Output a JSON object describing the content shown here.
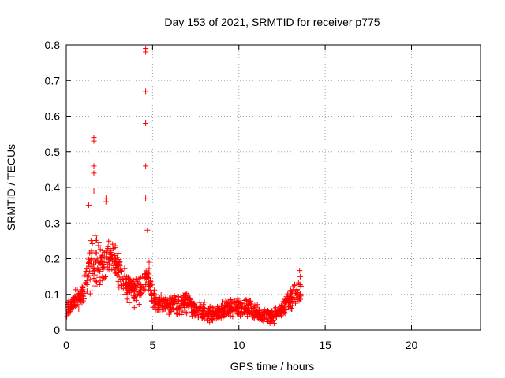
{
  "chart_data": {
    "type": "scatter",
    "title": "Day 153 of 2021, SRMTID for receiver p775",
    "xlabel": "GPS time / hours",
    "ylabel": "SRMTID / TECUs",
    "xlim": [
      0,
      24
    ],
    "ylim": [
      0,
      0.8
    ],
    "x_ticks": [
      0,
      5,
      10,
      15,
      20
    ],
    "y_ticks": [
      0,
      0.1,
      0.2,
      0.3,
      0.4,
      0.5,
      0.6,
      0.7,
      0.8
    ],
    "x_tick_labels": [
      "0",
      "5",
      "10",
      "15",
      "20"
    ],
    "y_tick_labels": [
      "0",
      "0.1",
      "0.2",
      "0.3",
      "0.4",
      "0.5",
      "0.6",
      "0.7",
      "0.8"
    ],
    "grid": true,
    "marker": "+",
    "color": "#ff0000",
    "envelope": [
      [
        0.0,
        0.03,
        0.07
      ],
      [
        0.3,
        0.05,
        0.1
      ],
      [
        0.6,
        0.05,
        0.13
      ],
      [
        0.9,
        0.06,
        0.12
      ],
      [
        1.2,
        0.08,
        0.22
      ],
      [
        1.5,
        0.1,
        0.28
      ],
      [
        1.8,
        0.12,
        0.26
      ],
      [
        2.1,
        0.13,
        0.24
      ],
      [
        2.4,
        0.14,
        0.26
      ],
      [
        2.7,
        0.15,
        0.25
      ],
      [
        3.0,
        0.12,
        0.23
      ],
      [
        3.3,
        0.09,
        0.18
      ],
      [
        3.6,
        0.07,
        0.16
      ],
      [
        3.9,
        0.06,
        0.15
      ],
      [
        4.2,
        0.06,
        0.17
      ],
      [
        4.5,
        0.1,
        0.19
      ],
      [
        4.8,
        0.09,
        0.18
      ],
      [
        5.1,
        0.05,
        0.12
      ],
      [
        5.4,
        0.05,
        0.1
      ],
      [
        5.7,
        0.05,
        0.1
      ],
      [
        6.0,
        0.04,
        0.1
      ],
      [
        6.5,
        0.04,
        0.1
      ],
      [
        7.0,
        0.04,
        0.12
      ],
      [
        7.5,
        0.03,
        0.08
      ],
      [
        8.0,
        0.02,
        0.08
      ],
      [
        8.5,
        0.02,
        0.07
      ],
      [
        9.0,
        0.03,
        0.08
      ],
      [
        9.5,
        0.03,
        0.1
      ],
      [
        10.0,
        0.04,
        0.09
      ],
      [
        10.5,
        0.03,
        0.09
      ],
      [
        11.0,
        0.02,
        0.08
      ],
      [
        11.5,
        0.02,
        0.07
      ],
      [
        12.0,
        0.01,
        0.06
      ],
      [
        12.5,
        0.03,
        0.09
      ],
      [
        13.0,
        0.05,
        0.12
      ],
      [
        13.3,
        0.06,
        0.15
      ],
      [
        13.6,
        0.07,
        0.18
      ]
    ],
    "outliers": [
      [
        1.6,
        0.54
      ],
      [
        1.6,
        0.53
      ],
      [
        1.6,
        0.46
      ],
      [
        1.6,
        0.44
      ],
      [
        1.6,
        0.39
      ],
      [
        2.3,
        0.37
      ],
      [
        2.3,
        0.36
      ],
      [
        1.3,
        0.35
      ],
      [
        4.6,
        0.79
      ],
      [
        4.6,
        0.78
      ],
      [
        4.6,
        0.67
      ],
      [
        4.6,
        0.58
      ],
      [
        4.6,
        0.46
      ],
      [
        4.6,
        0.37
      ],
      [
        4.7,
        0.28
      ],
      [
        4.8,
        0.19
      ]
    ]
  }
}
